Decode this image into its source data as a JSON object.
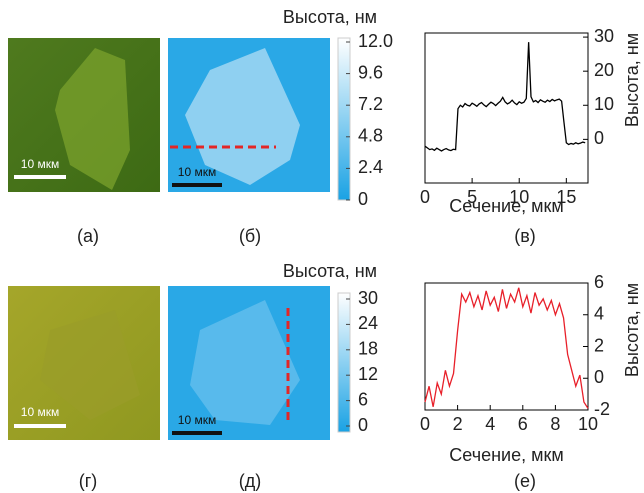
{
  "panels": {
    "labels": [
      "(а)",
      "(б)",
      "(в)",
      "(г)",
      "(д)",
      "(е)"
    ]
  },
  "images": [
    {
      "scale_bar": "10 мкм"
    },
    {
      "scale_bar": "10 мкм"
    },
    {
      "scale_bar": "10 мкм"
    },
    {
      "scale_bar": "10 мкм"
    }
  ],
  "colorbars": [
    {
      "title": "Высота, нм",
      "lim": [
        0,
        12
      ],
      "ticks": [
        {
          "value": 12,
          "label": "12.0"
        },
        9.6,
        7.2,
        4.8,
        2.4,
        0
      ]
    },
    {
      "title": "Высота, нм",
      "lim": [
        0,
        30
      ],
      "ticks": [
        30,
        24,
        18,
        12,
        6,
        0
      ]
    }
  ],
  "chart_data": [
    {
      "type": "line",
      "xlabel": "Сечение, мкм",
      "ylabel": "Высота, нм",
      "x": [
        0,
        0.25,
        0.5,
        0.75,
        1,
        1.25,
        1.5,
        1.75,
        2,
        2.25,
        2.5,
        2.75,
        3,
        3.25,
        3.5,
        3.75,
        4,
        4.25,
        4.5,
        4.75,
        5,
        5.25,
        5.5,
        5.75,
        6,
        6.25,
        6.5,
        6.75,
        7,
        7.25,
        7.5,
        7.75,
        8,
        8.25,
        8.5,
        8.75,
        9,
        9.25,
        9.5,
        9.75,
        10,
        10.25,
        10.5,
        10.75,
        11,
        11.25,
        11.5,
        11.75,
        12,
        12.25,
        12.5,
        12.75,
        13,
        13.25,
        13.5,
        13.75,
        14,
        14.25,
        14.5,
        14.75,
        15,
        15.25,
        15.5,
        15.75,
        16,
        16.25,
        16.5,
        16.75,
        17
      ],
      "series": [
        {
          "color": "#000000",
          "values": [
            -2,
            -2.5,
            -3,
            -2.8,
            -3.2,
            -2.6,
            -3,
            -3.4,
            -3,
            -2.7,
            -3.1,
            -3.3,
            -2.9,
            -3,
            9,
            10,
            9.5,
            10.5,
            10,
            9.8,
            10.6,
            10.2,
            9.7,
            10.4,
            10.8,
            10.1,
            9.6,
            10.3,
            10.9,
            10.5,
            9.9,
            10.6,
            11.2,
            12.3,
            11,
            10.4,
            10.8,
            11.5,
            10.7,
            10.2,
            11,
            10.6,
            10.9,
            12,
            28.5,
            12.5,
            11,
            11.4,
            10.8,
            11.6,
            11.2,
            10.9,
            11.5,
            11.1,
            11.7,
            11.3,
            11.6,
            11.8,
            11.2,
            5,
            -1,
            -1.5,
            -1.2,
            -1.4,
            -1,
            -1.3,
            -1.1,
            -0.8,
            -1
          ]
        }
      ],
      "xlim": [
        0,
        17.3
      ],
      "xticks": [
        0,
        5,
        10,
        15
      ],
      "ylim": [
        -12.8,
        31.2
      ],
      "yticks": [
        0,
        10,
        20,
        30
      ]
    },
    {
      "type": "line",
      "xlabel": "Сечение, мкм",
      "ylabel": "Высота, нм",
      "x": [
        0,
        0.25,
        0.5,
        0.75,
        1,
        1.25,
        1.5,
        1.75,
        2,
        2.25,
        2.5,
        2.75,
        3,
        3.25,
        3.5,
        3.75,
        4,
        4.25,
        4.5,
        4.75,
        5,
        5.25,
        5.5,
        5.75,
        6,
        6.25,
        6.5,
        6.75,
        7,
        7.25,
        7.5,
        7.75,
        8,
        8.25,
        8.5,
        8.75,
        9,
        9.25,
        9.5,
        9.75,
        10
      ],
      "series": [
        {
          "color": "#e8202a",
          "values": [
            -1.5,
            -0.5,
            -1.8,
            -0.3,
            -1,
            0.5,
            -0.5,
            0.3,
            3,
            5.3,
            4.8,
            5.4,
            4.5,
            5.2,
            4.3,
            5.5,
            4.6,
            5.1,
            4.2,
            5.6,
            4.4,
            5.3,
            4.8,
            5.7,
            4.5,
            5.2,
            4.1,
            5.4,
            4.6,
            5,
            4.3,
            4.9,
            4,
            4.7,
            3.8,
            1.5,
            0.5,
            -0.5,
            0.2,
            -1.5,
            -1.9
          ]
        }
      ],
      "xlim": [
        0,
        10
      ],
      "xticks": [
        0,
        2,
        4,
        6,
        8,
        10
      ],
      "ylim": [
        -2,
        6
      ],
      "yticks": [
        -2,
        0,
        2,
        4,
        6
      ]
    }
  ]
}
